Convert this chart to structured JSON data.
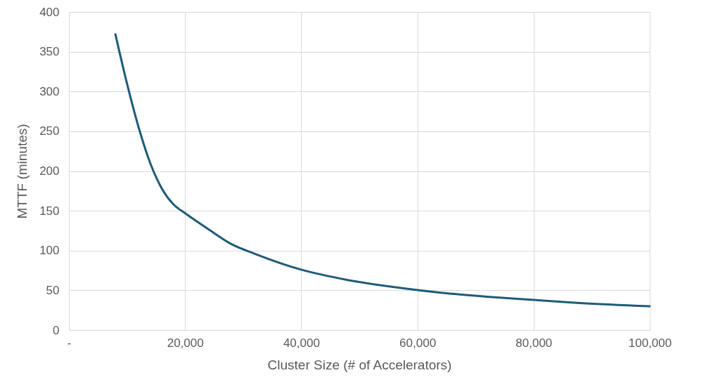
{
  "chart_data": {
    "type": "line",
    "xlabel": "Cluster Size (# of Accelerators)",
    "ylabel": "MTTF (minutes)",
    "x": [
      8000,
      10000,
      12000,
      14000,
      16000,
      18000,
      20000,
      24000,
      28000,
      32000,
      40000,
      48000,
      56000,
      64000,
      72000,
      80000,
      88000,
      100000
    ],
    "series": [
      {
        "color": "#1f5a78",
        "values": [
          372,
          310,
          255,
          210,
          178,
          158,
          147,
          127,
          108,
          96,
          76,
          63,
          54,
          47,
          42,
          38,
          34,
          30
        ]
      }
    ],
    "xlim": [
      0,
      100000
    ],
    "xticks": [
      {
        "value": 0,
        "label": "-"
      },
      {
        "value": 20000,
        "label": "20,000"
      },
      {
        "value": 40000,
        "label": "40,000"
      },
      {
        "value": 60000,
        "label": "60,000"
      },
      {
        "value": 80000,
        "label": "80,000"
      },
      {
        "value": 100000,
        "label": "100,000"
      }
    ],
    "ylim": [
      0,
      400
    ],
    "yticks": [
      0,
      50,
      100,
      150,
      200,
      250,
      300,
      350,
      400
    ],
    "grid": true,
    "legend": false,
    "marker": "none",
    "line_style": "solid"
  }
}
